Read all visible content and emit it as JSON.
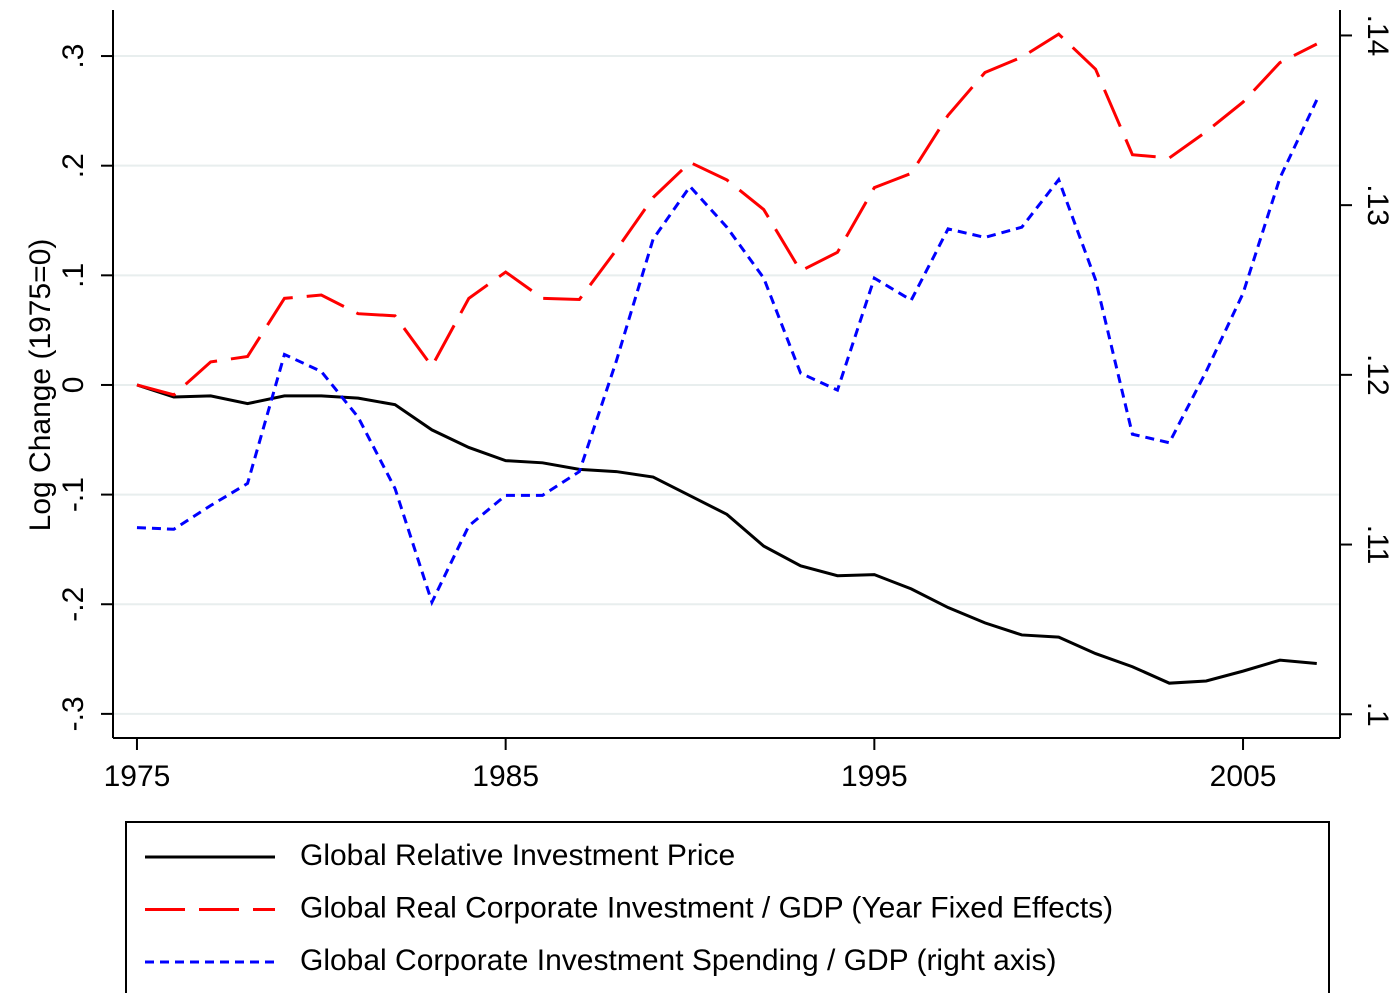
{
  "chart_data": {
    "type": "line",
    "y_label": "Log Change (1975=0)",
    "x": [
      1975,
      1976,
      1977,
      1978,
      1979,
      1980,
      1981,
      1982,
      1983,
      1984,
      1985,
      1986,
      1987,
      1988,
      1989,
      1990,
      1991,
      1992,
      1993,
      1994,
      1995,
      1996,
      1997,
      1998,
      1999,
      2000,
      2001,
      2002,
      2003,
      2004,
      2005,
      2006,
      2007
    ],
    "xlim": [
      1974.35,
      2007.63
    ],
    "xticks": [
      1975,
      1985,
      1995,
      2005
    ],
    "ylim": [
      -0.322,
      0.342
    ],
    "yticks": [
      {
        "value": -0.3,
        "label": "-.3"
      },
      {
        "value": -0.2,
        "label": "-.2"
      },
      {
        "value": -0.1,
        "label": "-.1"
      },
      0,
      {
        "value": 0.1,
        "label": ".1"
      },
      {
        "value": 0.2,
        "label": ".2"
      },
      {
        "value": 0.3,
        "label": ".3"
      }
    ],
    "y2lim": [
      0.0986,
      0.1415
    ],
    "y2ticks": [
      {
        "value": 0.1,
        "label": ".1"
      },
      {
        "value": 0.11,
        "label": ".11"
      },
      {
        "value": 0.12,
        "label": ".12"
      },
      {
        "value": 0.13,
        "label": ".13"
      },
      {
        "value": 0.14,
        "label": ".14"
      }
    ],
    "grid": true,
    "legend_position": "bottom",
    "series": [
      {
        "name": "Global Relative Investment Price",
        "color": "#000000",
        "dash": "solid",
        "values": [
          0,
          -0.011,
          -0.01,
          -0.017,
          -0.01,
          -0.01,
          -0.012,
          -0.018,
          -0.041,
          -0.057,
          -0.069,
          -0.071,
          -0.077,
          -0.079,
          -0.084,
          -0.101,
          -0.118,
          -0.147,
          -0.165,
          -0.174,
          -0.173,
          -0.186,
          -0.203,
          -0.217,
          -0.228,
          -0.23,
          -0.245,
          -0.257,
          -0.272,
          -0.27,
          -0.261,
          -0.251,
          -0.254
        ]
      },
      {
        "name": "Global Real Corporate Investment / GDP (Year Fixed Effects)",
        "color": "#ff0000",
        "dash": "long-dash",
        "values": [
          0,
          -0.009,
          0.021,
          0.026,
          0.079,
          0.082,
          0.065,
          0.063,
          0.017,
          0.079,
          0.103,
          0.079,
          0.078,
          0.123,
          0.171,
          0.203,
          0.187,
          0.16,
          0.104,
          0.121,
          0.18,
          0.193,
          0.246,
          0.285,
          0.299,
          0.32,
          0.288,
          0.21,
          0.207,
          0.231,
          0.258,
          0.294,
          0.311
        ]
      },
      {
        "name": "Global Corporate Investment Spending / GDP (right axis)",
        "color": "#0000ff",
        "dash": "short-dash",
        "axis": "y2",
        "values": [
          0.111,
          0.1109,
          0.1123,
          0.1136,
          0.1212,
          0.1202,
          0.1175,
          0.1133,
          0.1066,
          0.1111,
          0.1129,
          0.1129,
          0.1143,
          0.1208,
          0.128,
          0.1311,
          0.1287,
          0.1257,
          0.1201,
          0.1191,
          0.1257,
          0.1244,
          0.1286,
          0.1281,
          0.1287,
          0.1315,
          0.1256,
          0.1165,
          0.116,
          0.1202,
          0.1248,
          0.1316,
          0.1362
        ]
      }
    ]
  }
}
